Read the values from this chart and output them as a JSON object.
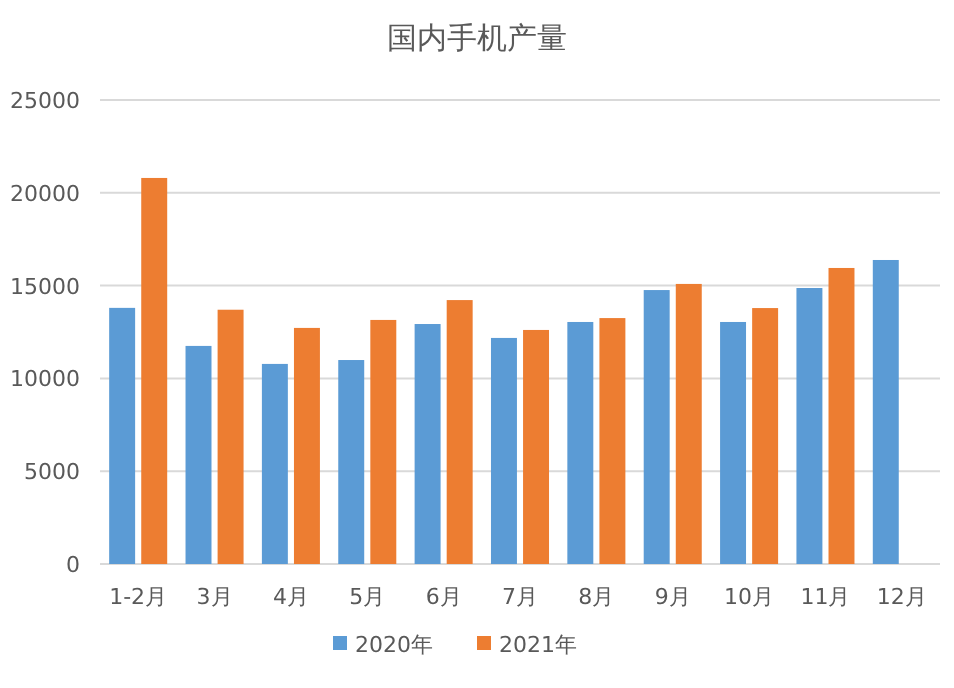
{
  "chart_data": {
    "type": "bar",
    "title": "国内手机产量",
    "categories": [
      "1-2月",
      "3月",
      "4月",
      "5月",
      "6月",
      "7月",
      "8月",
      "9月",
      "10月",
      "11月",
      "12月"
    ],
    "series": [
      {
        "name": "2020年",
        "color": "#5b9bd5",
        "values": [
          13800,
          11750,
          10780,
          10990,
          12930,
          12180,
          13040,
          14760,
          13040,
          14870,
          16380
        ]
      },
      {
        "name": "2021年",
        "color": "#ed7d31",
        "values": [
          20800,
          13700,
          12720,
          13150,
          14220,
          12610,
          13250,
          15090,
          13790,
          15950,
          null
        ]
      }
    ],
    "ylim": [
      0,
      25000
    ],
    "yticks": [
      0,
      5000,
      10000,
      15000,
      20000,
      25000
    ],
    "grid": "y",
    "legend": "bottom"
  }
}
